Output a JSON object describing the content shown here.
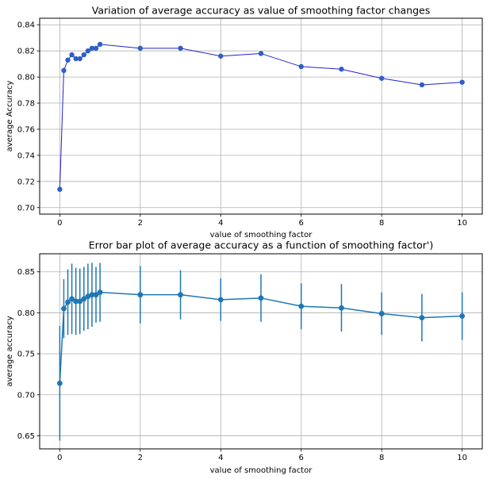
{
  "chart_data": [
    {
      "type": "line",
      "title": "Variation of average accuracy as value of smoothing factor changes",
      "xlabel": "value of smoothing factor",
      "ylabel": "average Accuracy",
      "xlim": [
        -0.5,
        10.5
      ],
      "ylim": [
        0.695,
        0.845
      ],
      "xticks": [
        0,
        2,
        4,
        6,
        8,
        10
      ],
      "yticks": [
        0.7,
        0.72,
        0.74,
        0.76,
        0.78,
        0.8,
        0.82,
        0.84
      ],
      "ytick_decimals": 2,
      "grid": true,
      "color": "#2222cc",
      "marker_color": "#2f5fc4",
      "series": [
        {
          "x": [
            0.0,
            0.1,
            0.2,
            0.3,
            0.4,
            0.5,
            0.6,
            0.7,
            0.8,
            0.9,
            1.0,
            2,
            3,
            4,
            5,
            6,
            7,
            8,
            9,
            10
          ],
          "values": [
            0.714,
            0.805,
            0.813,
            0.817,
            0.814,
            0.814,
            0.817,
            0.82,
            0.822,
            0.822,
            0.825,
            0.822,
            0.822,
            0.816,
            0.818,
            0.808,
            0.806,
            0.799,
            0.794,
            0.796
          ]
        }
      ]
    },
    {
      "type": "line",
      "title": "Error bar plot of average accuracy as a function of smoothing factor')",
      "xlabel": "value of smoothing factor",
      "ylabel": "average accuracy",
      "xlim": [
        -0.5,
        10.5
      ],
      "ylim": [
        0.634,
        0.872
      ],
      "xticks": [
        0,
        2,
        4,
        6,
        8,
        10
      ],
      "yticks": [
        0.65,
        0.7,
        0.75,
        0.8,
        0.85
      ],
      "ytick_decimals": 2,
      "grid": true,
      "color": "#1f77b4",
      "marker_color": "#1f77b4",
      "series": [
        {
          "x": [
            0.0,
            0.1,
            0.2,
            0.3,
            0.4,
            0.5,
            0.6,
            0.7,
            0.8,
            0.9,
            1.0,
            2,
            3,
            4,
            5,
            6,
            7,
            8,
            9,
            10
          ],
          "values": [
            0.714,
            0.805,
            0.813,
            0.817,
            0.814,
            0.814,
            0.817,
            0.82,
            0.822,
            0.822,
            0.825,
            0.822,
            0.822,
            0.816,
            0.818,
            0.808,
            0.806,
            0.799,
            0.794,
            0.796
          ],
          "error": [
            0.07,
            0.036,
            0.04,
            0.043,
            0.041,
            0.04,
            0.039,
            0.04,
            0.039,
            0.034,
            0.036,
            0.035,
            0.03,
            0.026,
            0.029,
            0.028,
            0.029,
            0.026,
            0.029,
            0.029
          ]
        }
      ]
    }
  ]
}
